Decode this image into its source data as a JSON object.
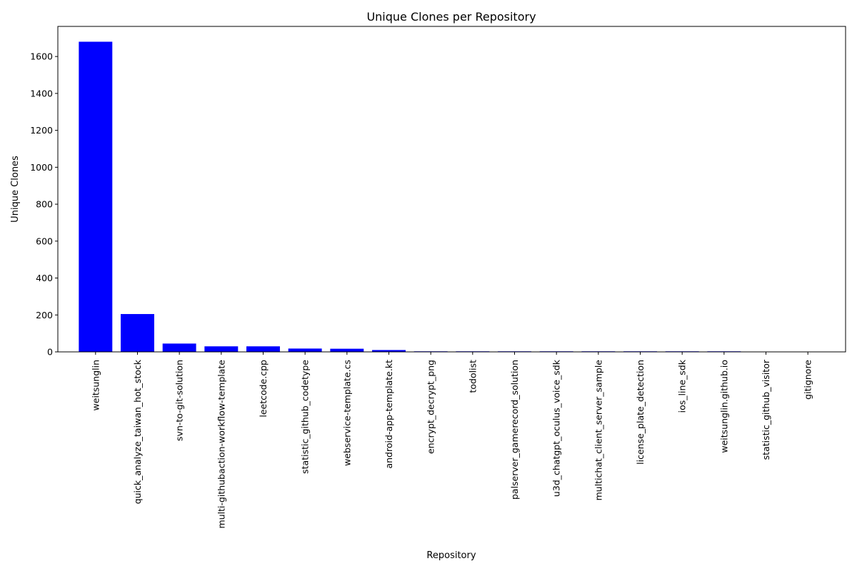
{
  "chart_data": {
    "type": "bar",
    "title": "Unique Clones per Repository",
    "xlabel": "Repository",
    "ylabel": "Unique Clones",
    "categories": [
      "weitsunglin",
      "quick_analyze_taiwan_hot_stock",
      "svn-to-git-solution",
      "multi-githubaction-workflow-template",
      "leetcode.cpp",
      "statistic_github_codetype",
      "webservice-template.cs",
      "android-app-template.kt",
      "encrypt_decrypt_png",
      "todolist",
      "palserver_gamerecord_solution",
      "u3d_chatgpt_oculus_voice_sdk",
      "multichat_client_server_sample",
      "license_plate_detection",
      "ios_line_sdk",
      "weitsunglin.github.io",
      "statistic_github_visitor",
      "gitignore"
    ],
    "values": [
      1680,
      205,
      45,
      30,
      30,
      18,
      17,
      10,
      3,
      3,
      3,
      3,
      3,
      3,
      3,
      3,
      0,
      0
    ],
    "ylim": [
      0,
      1763
    ],
    "yticks": [
      0,
      200,
      400,
      600,
      800,
      1000,
      1200,
      1400,
      1600
    ],
    "grid": false,
    "bar_color": "#0000ff"
  }
}
